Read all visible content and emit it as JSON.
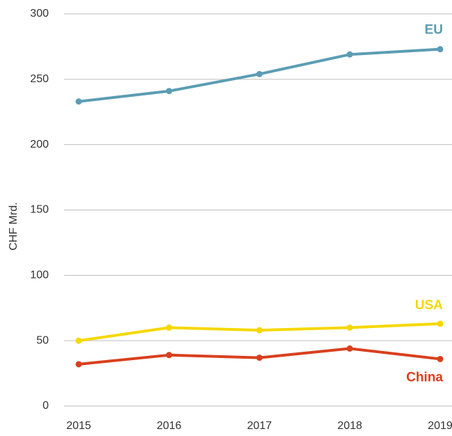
{
  "chart_data": {
    "type": "line",
    "y_label": "CHF Mrd.",
    "categories": [
      "2015",
      "2016",
      "2017",
      "2018",
      "2019"
    ],
    "series": [
      {
        "name": "EU",
        "color": "#5b9db3",
        "values": [
          233,
          241,
          254,
          269,
          273
        ]
      },
      {
        "name": "USA",
        "color": "#f5d800",
        "values": [
          50,
          60,
          58,
          60,
          63
        ]
      },
      {
        "name": "China",
        "color": "#d9401e",
        "values": [
          32,
          39,
          37,
          44,
          36
        ]
      }
    ],
    "ylim": [
      0,
      300
    ],
    "yticks": [
      0,
      50,
      100,
      150,
      200,
      250,
      300
    ],
    "grid": true
  }
}
